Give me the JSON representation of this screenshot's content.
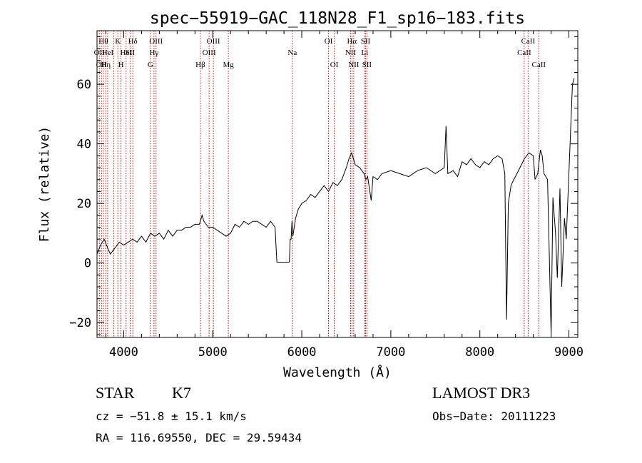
{
  "chart_data": {
    "type": "line",
    "title": "spec−55919−GAC_118N28_F1_sp16−183.fits",
    "xlabel": "Wavelength (Å)",
    "ylabel": "Flux (relative)",
    "xlim": [
      3700,
      9100
    ],
    "ylim": [
      -25,
      78
    ],
    "x_ticks": [
      {
        "value": 4000,
        "label": "4000"
      },
      {
        "value": 5000,
        "label": "5000"
      },
      {
        "value": 6000,
        "label": "6000"
      },
      {
        "value": 7000,
        "label": "7000"
      },
      {
        "value": 8000,
        "label": "8000"
      },
      {
        "value": 9000,
        "label": "9000"
      }
    ],
    "y_ticks": [
      {
        "value": -20,
        "label": "−20"
      },
      {
        "value": 0,
        "label": "0"
      },
      {
        "value": 20,
        "label": "20"
      },
      {
        "value": 40,
        "label": "40"
      },
      {
        "value": 60,
        "label": "60"
      }
    ],
    "grid": false,
    "line_color": "#000000",
    "marker_line_color": "#cc0000",
    "series": [
      {
        "points": [
          [
            3700,
            3
          ],
          [
            3740,
            6
          ],
          [
            3780,
            8
          ],
          [
            3820,
            5
          ],
          [
            3850,
            3
          ],
          [
            3900,
            5
          ],
          [
            3950,
            7
          ],
          [
            4000,
            6
          ],
          [
            4050,
            7
          ],
          [
            4100,
            8
          ],
          [
            4150,
            7
          ],
          [
            4200,
            9
          ],
          [
            4250,
            7
          ],
          [
            4300,
            10
          ],
          [
            4350,
            9
          ],
          [
            4400,
            10
          ],
          [
            4450,
            8
          ],
          [
            4500,
            11
          ],
          [
            4550,
            9
          ],
          [
            4600,
            11
          ],
          [
            4650,
            11
          ],
          [
            4700,
            12
          ],
          [
            4750,
            12
          ],
          [
            4800,
            13
          ],
          [
            4850,
            13
          ],
          [
            4880,
            16
          ],
          [
            4900,
            14
          ],
          [
            4950,
            12
          ],
          [
            5000,
            12
          ],
          [
            5050,
            11
          ],
          [
            5100,
            10
          ],
          [
            5150,
            9
          ],
          [
            5200,
            10
          ],
          [
            5250,
            13
          ],
          [
            5300,
            12
          ],
          [
            5350,
            14
          ],
          [
            5400,
            13
          ],
          [
            5450,
            14
          ],
          [
            5500,
            14
          ],
          [
            5550,
            13
          ],
          [
            5600,
            12
          ],
          [
            5650,
            14
          ],
          [
            5700,
            12
          ],
          [
            5720,
            0.3
          ],
          [
            5800,
            0.2
          ],
          [
            5860,
            0.3
          ],
          [
            5870,
            8
          ],
          [
            5880,
            8
          ],
          [
            5890,
            14
          ],
          [
            5900,
            9
          ],
          [
            5930,
            15
          ],
          [
            5960,
            18
          ],
          [
            6000,
            20
          ],
          [
            6050,
            21
          ],
          [
            6100,
            23
          ],
          [
            6150,
            22
          ],
          [
            6200,
            24
          ],
          [
            6250,
            26
          ],
          [
            6300,
            24
          ],
          [
            6350,
            27
          ],
          [
            6400,
            26
          ],
          [
            6450,
            28
          ],
          [
            6500,
            32
          ],
          [
            6530,
            35
          ],
          [
            6560,
            37
          ],
          [
            6600,
            33
          ],
          [
            6650,
            32
          ],
          [
            6700,
            30
          ],
          [
            6720,
            28
          ],
          [
            6740,
            29
          ],
          [
            6780,
            21
          ],
          [
            6800,
            29
          ],
          [
            6850,
            28
          ],
          [
            6900,
            30
          ],
          [
            7000,
            31
          ],
          [
            7100,
            30
          ],
          [
            7200,
            29
          ],
          [
            7300,
            31
          ],
          [
            7400,
            32
          ],
          [
            7500,
            30
          ],
          [
            7600,
            32
          ],
          [
            7620,
            46
          ],
          [
            7640,
            30
          ],
          [
            7700,
            31
          ],
          [
            7750,
            29
          ],
          [
            7800,
            34
          ],
          [
            7850,
            33
          ],
          [
            7900,
            35
          ],
          [
            7950,
            33
          ],
          [
            8000,
            32
          ],
          [
            8050,
            34
          ],
          [
            8100,
            33
          ],
          [
            8150,
            35
          ],
          [
            8200,
            36
          ],
          [
            8250,
            35
          ],
          [
            8280,
            30
          ],
          [
            8300,
            -19
          ],
          [
            8320,
            20
          ],
          [
            8350,
            26
          ],
          [
            8380,
            28
          ],
          [
            8400,
            29
          ],
          [
            8450,
            32
          ],
          [
            8500,
            35
          ],
          [
            8550,
            37
          ],
          [
            8600,
            36
          ],
          [
            8620,
            28
          ],
          [
            8650,
            30
          ],
          [
            8680,
            38
          ],
          [
            8700,
            36
          ],
          [
            8720,
            30
          ],
          [
            8760,
            28
          ],
          [
            8800,
            -24
          ],
          [
            8820,
            22
          ],
          [
            8850,
            10
          ],
          [
            8870,
            -5
          ],
          [
            8900,
            25
          ],
          [
            8920,
            -8
          ],
          [
            8950,
            15
          ],
          [
            8970,
            8
          ],
          [
            9000,
            30
          ],
          [
            9020,
            45
          ],
          [
            9040,
            60
          ],
          [
            9060,
            62
          ]
        ]
      }
    ],
    "line_markers": [
      {
        "wl": 3726,
        "label": "OII",
        "row": 1
      },
      {
        "wl": 3750,
        "label": "OII",
        "row": 2
      },
      {
        "wl": 3771,
        "label": "Hθ",
        "row": 0
      },
      {
        "wl": 3798,
        "label": "Hη",
        "row": 2
      },
      {
        "wl": 3820,
        "label": "HeI",
        "row": 1
      },
      {
        "wl": 3889,
        "label": "",
        "row": 0
      },
      {
        "wl": 3934,
        "label": "K",
        "row": 0
      },
      {
        "wl": 3969,
        "label": "H",
        "row": 2
      },
      {
        "wl": 4026,
        "label": "HeI",
        "row": 1
      },
      {
        "wl": 4072,
        "label": "SII",
        "row": 1
      },
      {
        "wl": 4102,
        "label": "Hδ",
        "row": 0
      },
      {
        "wl": 4300,
        "label": "G",
        "row": 2
      },
      {
        "wl": 4340,
        "label": "Hγ",
        "row": 1
      },
      {
        "wl": 4363,
        "label": "OIII",
        "row": 0
      },
      {
        "wl": 4861,
        "label": "Hβ",
        "row": 2
      },
      {
        "wl": 4959,
        "label": "OIII",
        "row": 1
      },
      {
        "wl": 5007,
        "label": "OIII",
        "row": 0
      },
      {
        "wl": 5175,
        "label": "Mg",
        "row": 2
      },
      {
        "wl": 5894,
        "label": "Na",
        "row": 1
      },
      {
        "wl": 6300,
        "label": "OI",
        "row": 0
      },
      {
        "wl": 6364,
        "label": "OI",
        "row": 2
      },
      {
        "wl": 6548,
        "label": "NII",
        "row": 1
      },
      {
        "wl": 6563,
        "label": "Hα",
        "row": 0
      },
      {
        "wl": 6583,
        "label": "NII",
        "row": 2
      },
      {
        "wl": 6707,
        "label": "Li",
        "row": 1
      },
      {
        "wl": 6716,
        "label": "SII",
        "row": 0
      },
      {
        "wl": 6731,
        "label": "SII",
        "row": 2
      },
      {
        "wl": 8498,
        "label": "CaII",
        "row": 1
      },
      {
        "wl": 8542,
        "label": "CaII",
        "row": 0
      },
      {
        "wl": 8662,
        "label": "CaII",
        "row": 2
      }
    ]
  },
  "info": {
    "class": "STAR",
    "subclass": "K7",
    "survey": "LAMOST DR3",
    "cz": "cz = −51.8 ± 15.1 km/s",
    "obs_date": "Obs−Date: 20111223",
    "coords": "RA = 116.69550, DEC =  29.59434"
  }
}
